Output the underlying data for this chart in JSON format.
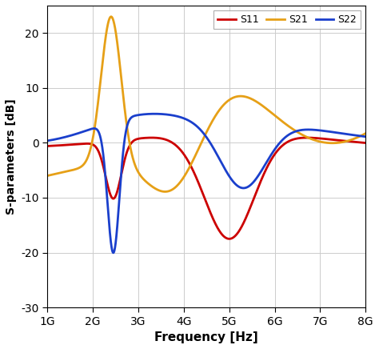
{
  "xlabel": "Frequency [Hz]",
  "ylabel": "S-parameters [dB]",
  "xlim": [
    1000000000.0,
    8000000000.0
  ],
  "ylim": [
    -30,
    25
  ],
  "yticks": [
    -30,
    -20,
    -10,
    0,
    10,
    20
  ],
  "xtick_labels": [
    "1G",
    "2G",
    "3G",
    "4G",
    "5G",
    "6G",
    "7G",
    "8G"
  ],
  "xtick_vals": [
    1000000000.0,
    2000000000.0,
    3000000000.0,
    4000000000.0,
    5000000000.0,
    6000000000.0,
    7000000000.0,
    8000000000.0
  ],
  "legend": [
    "S11",
    "S21",
    "S22"
  ],
  "colors": {
    "S11": "#cc0000",
    "S21": "#e6a017",
    "S22": "#1a3fcc"
  },
  "linewidth": 2.0,
  "background_color": "#ffffff",
  "grid_color": "#cccccc"
}
